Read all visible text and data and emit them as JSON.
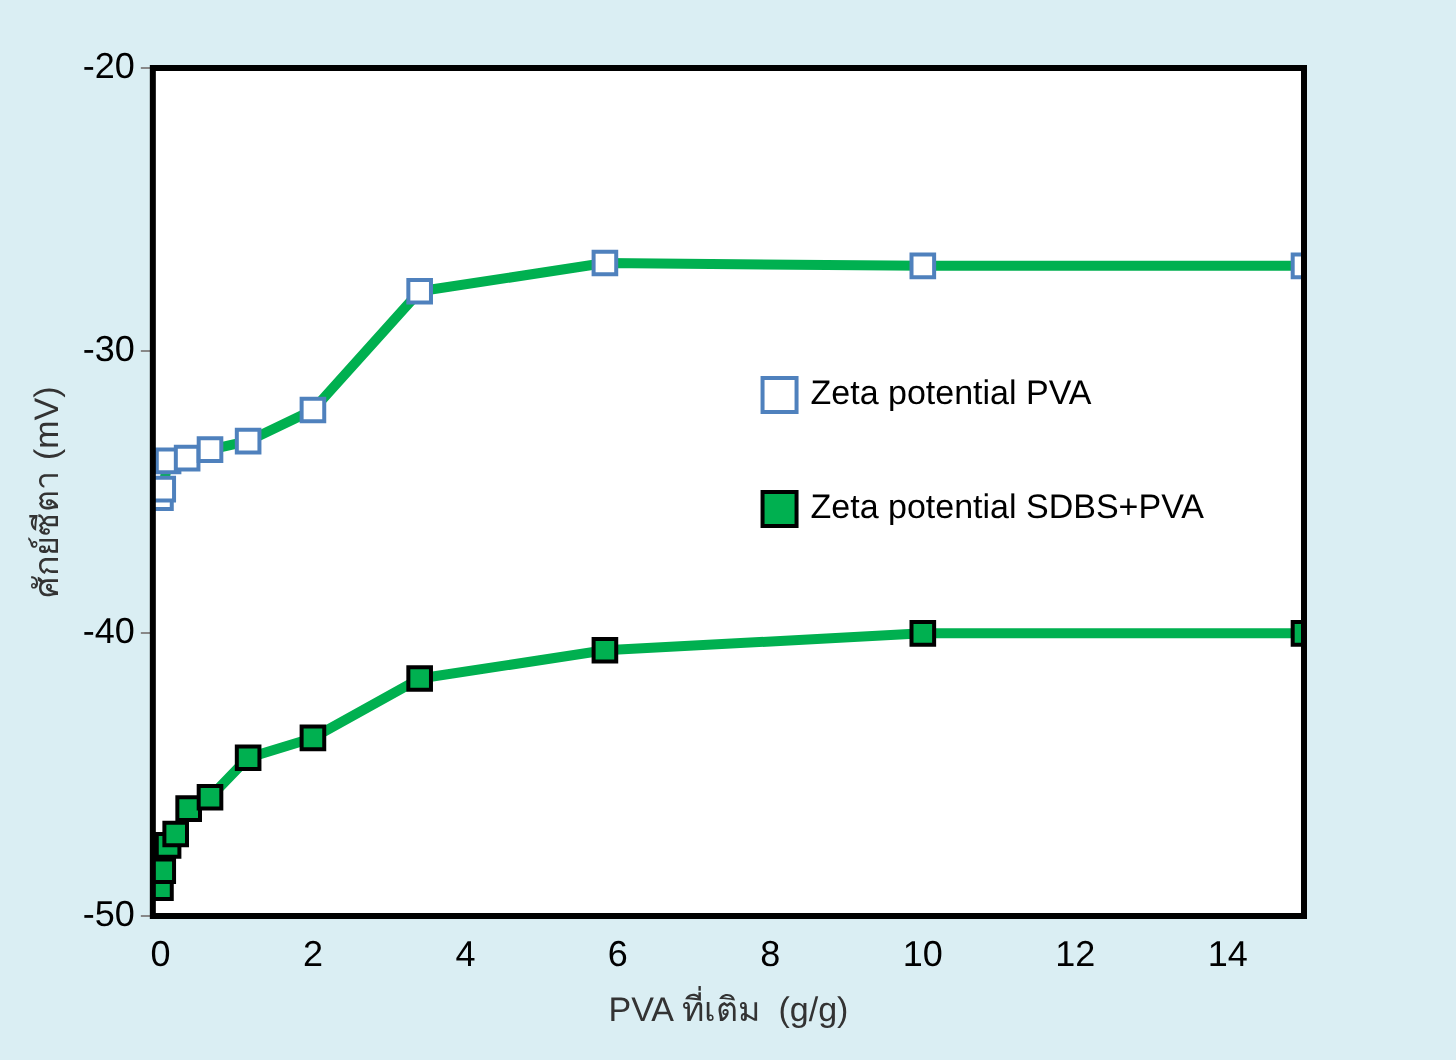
{
  "chart_data": {
    "type": "line",
    "xlabel": "PVA ที่เติม  (g/g)",
    "ylabel": "ศักย์ซีตา (mV)",
    "xlim": [
      -0.1,
      15
    ],
    "xticks": [
      0,
      2,
      4,
      6,
      8,
      10,
      12,
      14
    ],
    "ylim": [
      -50,
      -20
    ],
    "yticks": [
      -50,
      -40,
      -30,
      -20
    ],
    "grid": false,
    "legend": "right",
    "marker": "square",
    "line_style": "solid",
    "series": [
      {
        "name": "Zeta potential PVA",
        "color": "#00b050",
        "x": [
          0,
          0.03,
          0.1,
          0.35,
          0.65,
          1.15,
          2,
          3.4,
          5.83,
          10,
          15
        ],
        "values": [
          -35.2,
          -34.9,
          -33.9,
          -33.8,
          -33.5,
          -33.2,
          -32.1,
          -27.9,
          -26.9,
          -27,
          -27
        ]
      },
      {
        "name": "Zeta potential SDBS+PVA",
        "color": "#00b050",
        "x": [
          0,
          0.03,
          0.1,
          0.2,
          0.37,
          0.65,
          1.15,
          2,
          3.4,
          5.83,
          10,
          15
        ],
        "values": [
          -49,
          -48.4,
          -47.5,
          -47.1,
          -46.2,
          -45.8,
          -44.4,
          -43.7,
          -41.6,
          -40.6,
          -40,
          -40
        ]
      }
    ]
  }
}
